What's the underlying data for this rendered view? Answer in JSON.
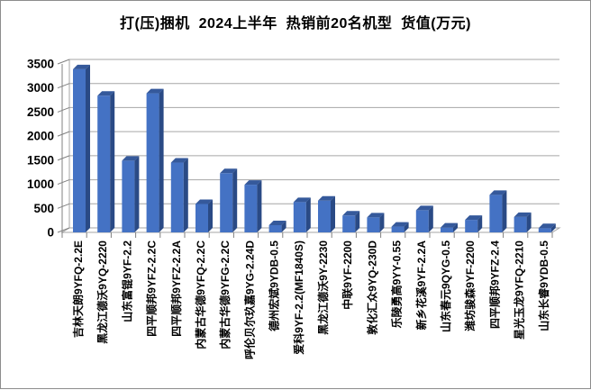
{
  "chart_data": {
    "type": "bar",
    "style": "3d-column",
    "title": "打(压)捆机  2024上半年  热销前20名机型  货值(万元)",
    "xlabel": "",
    "ylabel": "",
    "ylim": [
      0,
      3500
    ],
    "ytick_step": 500,
    "yticks": [
      0,
      500,
      1000,
      1500,
      2000,
      2500,
      3000,
      3500
    ],
    "grid": true,
    "legend": "none",
    "categories": [
      "吉林天朗9YFQ-2.2E",
      "黑龙江德沃9YQ-2220",
      "山东富锟9YF-2.2",
      "四平顺邦9YFZ-2.2C",
      "四平顺邦9YFZ-2.2A",
      "内蒙古华德9YFQ-2.2C",
      "内蒙古华德9YFG-2.2C",
      "呼伦贝尔玖嘉9YG-2.24D",
      "德州宏斌9YDB-0.5",
      "爱科9YF-2.2(MF1840S)",
      "黑龙江德沃9Y-2230",
      "中联9YF-2200",
      "敦化汇众9YQ-230D",
      "乐陵勇高9YY-0.55",
      "新乡花溪9YF-2.2A",
      "山东春元9QYG-0.5",
      "潍坊骏森9YF-2200",
      "四平顺邦9YFZ-2.4",
      "星光玉龙9YFQ-2210",
      "山东长睿9YDB-0.5"
    ],
    "values": [
      3390,
      2840,
      1490,
      2890,
      1450,
      590,
      1230,
      990,
      150,
      630,
      660,
      350,
      310,
      120,
      460,
      100,
      260,
      780,
      320,
      90
    ],
    "colors": {
      "bar_front": "#4472C4",
      "bar_top": "#35599B",
      "bar_side": "#2A4A85",
      "gridline": "#A6A6A6",
      "axis": "#808080",
      "text": "#000000",
      "background": "#FFFFFF",
      "border": "#8C8C8C"
    }
  }
}
